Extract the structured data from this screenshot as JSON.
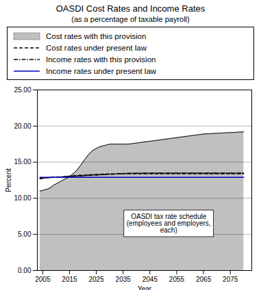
{
  "chart_data": {
    "type": "line",
    "title": "OASDI Cost Rates and Income Rates",
    "subtitle": "(as a percentage of taxable payroll)",
    "xlabel": "Year",
    "ylabel": "Percent",
    "xlim": [
      2003,
      2083
    ],
    "ylim": [
      0,
      25
    ],
    "xticks": [
      2005,
      2015,
      2025,
      2035,
      2045,
      2055,
      2065,
      2075
    ],
    "yticks": [
      {
        "value": 0,
        "label": "0.00"
      },
      {
        "value": 5,
        "label": "5.00"
      },
      {
        "value": 10,
        "label": "10.00"
      },
      {
        "value": 15,
        "label": "15.00"
      },
      {
        "value": 20,
        "label": "20.00"
      },
      {
        "value": 25,
        "label": "25.00"
      }
    ],
    "grid": true,
    "legend": "top",
    "x": [
      2004,
      2005,
      2006,
      2007,
      2008,
      2009,
      2010,
      2011,
      2012,
      2013,
      2014,
      2015,
      2016,
      2017,
      2018,
      2019,
      2020,
      2021,
      2022,
      2023,
      2024,
      2025,
      2026,
      2027,
      2028,
      2029,
      2030,
      2031,
      2032,
      2033,
      2034,
      2035,
      2036,
      2037,
      2038,
      2039,
      2040,
      2041,
      2042,
      2043,
      2044,
      2045,
      2046,
      2047,
      2048,
      2049,
      2050,
      2051,
      2052,
      2053,
      2054,
      2055,
      2056,
      2057,
      2058,
      2059,
      2060,
      2061,
      2062,
      2063,
      2064,
      2065,
      2066,
      2067,
      2068,
      2069,
      2070,
      2071,
      2072,
      2073,
      2074,
      2075,
      2076,
      2077,
      2078,
      2079,
      2080
    ],
    "series": [
      {
        "name": "Cost rates with this provision",
        "type": "area",
        "color": "#c0c0c0",
        "line_style": "solid",
        "values": [
          11.0,
          11.1,
          11.2,
          11.3,
          11.5,
          11.8,
          12.0,
          12.2,
          12.4,
          12.6,
          12.8,
          13.0,
          13.3,
          13.6,
          14.0,
          14.5,
          15.0,
          15.5,
          16.0,
          16.4,
          16.7,
          16.9,
          17.1,
          17.2,
          17.3,
          17.4,
          17.5,
          17.5,
          17.5,
          17.5,
          17.5,
          17.5,
          17.5,
          17.5,
          17.55,
          17.6,
          17.65,
          17.7,
          17.75,
          17.8,
          17.85,
          17.9,
          17.95,
          18.0,
          18.05,
          18.1,
          18.15,
          18.2,
          18.25,
          18.3,
          18.35,
          18.4,
          18.45,
          18.5,
          18.55,
          18.6,
          18.65,
          18.7,
          18.75,
          18.8,
          18.85,
          18.9,
          18.92,
          18.94,
          18.96,
          18.98,
          19.0,
          19.02,
          19.04,
          19.06,
          19.08,
          19.1,
          19.12,
          19.14,
          19.16,
          19.18,
          19.2
        ]
      },
      {
        "name": "Cost rates under present law",
        "type": "line",
        "color": "#000000",
        "line_style": "dashed",
        "values": [
          12.7,
          12.75,
          12.8,
          12.85,
          12.9,
          12.92,
          12.94,
          12.96,
          12.98,
          13.0,
          13.05,
          13.08,
          13.1,
          13.12,
          13.15,
          13.18,
          13.2,
          13.22,
          13.24,
          13.26,
          13.28,
          13.3,
          13.32,
          13.34,
          13.35,
          13.36,
          13.37,
          13.38,
          13.38,
          13.39,
          13.4,
          13.4,
          13.4,
          13.4,
          13.4,
          13.4,
          13.4,
          13.4,
          13.4,
          13.4,
          13.4,
          13.4,
          13.4,
          13.4,
          13.4,
          13.4,
          13.4,
          13.4,
          13.4,
          13.4,
          13.4,
          13.4,
          13.4,
          13.4,
          13.4,
          13.4,
          13.4,
          13.4,
          13.4,
          13.4,
          13.4,
          13.4,
          13.4,
          13.4,
          13.4,
          13.4,
          13.4,
          13.4,
          13.4,
          13.4,
          13.4,
          13.4,
          13.4,
          13.4,
          13.4,
          13.4,
          13.4
        ]
      },
      {
        "name": "Income rates with this provision",
        "type": "line",
        "color": "#000000",
        "line_style": "dashdot",
        "values": [
          12.8,
          12.82,
          12.84,
          12.86,
          12.88,
          12.9,
          12.92,
          12.94,
          12.96,
          12.98,
          13.0,
          13.02,
          13.04,
          13.06,
          13.08,
          13.1,
          13.12,
          13.14,
          13.16,
          13.18,
          13.2,
          13.22,
          13.24,
          13.26,
          13.28,
          13.3,
          13.32,
          13.34,
          13.36,
          13.38,
          13.4,
          13.42,
          13.44,
          13.46,
          13.46,
          13.47,
          13.47,
          13.48,
          13.48,
          13.49,
          13.49,
          13.5,
          13.5,
          13.5,
          13.5,
          13.5,
          13.5,
          13.5,
          13.5,
          13.5,
          13.5,
          13.5,
          13.5,
          13.5,
          13.5,
          13.5,
          13.5,
          13.5,
          13.5,
          13.5,
          13.5,
          13.5,
          13.5,
          13.5,
          13.5,
          13.5,
          13.5,
          13.5,
          13.5,
          13.5,
          13.5,
          13.5,
          13.5,
          13.5,
          13.5,
          13.5,
          13.5
        ]
      },
      {
        "name": "Income rates under present law",
        "type": "line",
        "color": "#0000bb",
        "line_style": "solid",
        "values": [
          12.9,
          12.9,
          12.9,
          12.9,
          12.9,
          12.9,
          12.9,
          12.9,
          12.9,
          12.9,
          12.9,
          12.9,
          12.9,
          12.9,
          12.9,
          12.9,
          12.9,
          12.9,
          12.9,
          12.9,
          12.9,
          12.9,
          12.9,
          12.9,
          12.9,
          12.9,
          12.9,
          12.9,
          12.9,
          12.9,
          12.9,
          12.9,
          12.9,
          12.9,
          12.9,
          12.9,
          12.9,
          12.9,
          12.9,
          12.9,
          12.9,
          12.9,
          12.9,
          12.9,
          12.9,
          12.9,
          12.9,
          12.9,
          12.9,
          12.9,
          12.9,
          12.9,
          12.9,
          12.9,
          12.9,
          12.9,
          12.9,
          12.9,
          12.9,
          12.9,
          12.9,
          12.9,
          12.9,
          12.9,
          12.9,
          12.9,
          12.9,
          12.9,
          12.9,
          12.9,
          12.9,
          12.9,
          12.9,
          12.9,
          12.9,
          12.9,
          12.9
        ]
      }
    ],
    "annotations": [
      {
        "text": "OASDI tax rate schedule\n(employees and employers,\neach)",
        "x": 2052,
        "y": 6.5
      }
    ]
  }
}
